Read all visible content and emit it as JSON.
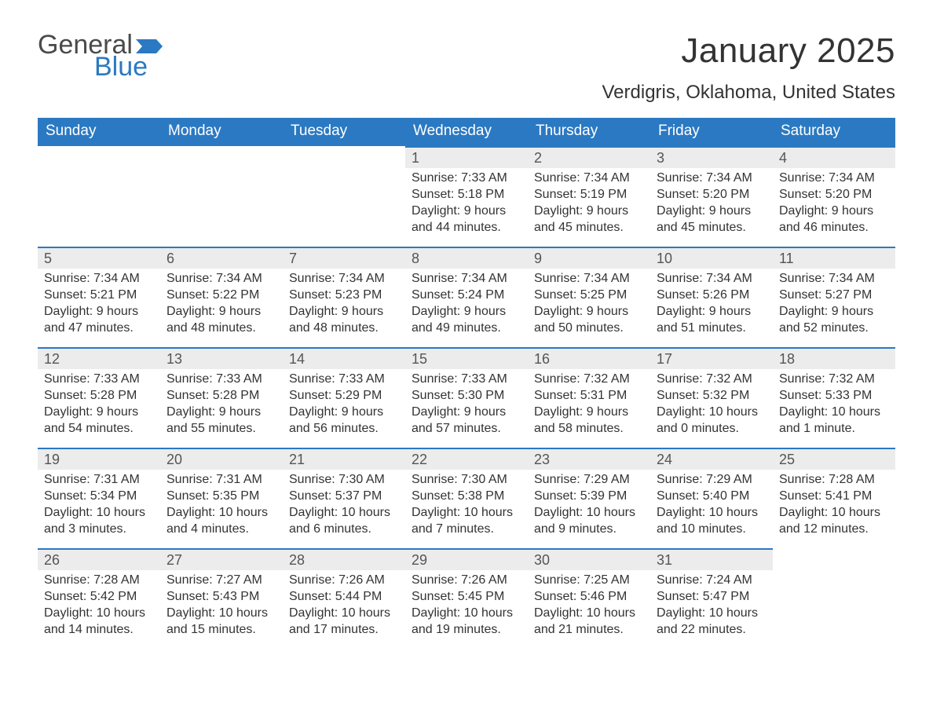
{
  "brand": {
    "word1": "General",
    "word2": "Blue",
    "word1_color": "#4a4a4a",
    "word2_color": "#2b79c2",
    "flag_color": "#2b79c2"
  },
  "title": "January 2025",
  "location": "Verdigris, Oklahoma, United States",
  "colors": {
    "header_bg": "#2b79c2",
    "header_text": "#ffffff",
    "daybar_bg": "#ececec",
    "daybar_border": "#2b79c2",
    "body_text": "#333333",
    "daynum_text": "#555555",
    "page_bg": "#ffffff"
  },
  "typography": {
    "title_fontsize": 44,
    "location_fontsize": 24,
    "weekday_fontsize": 19,
    "daynum_fontsize": 18,
    "body_fontsize": 16
  },
  "layout": {
    "columns": 7,
    "rows": 5,
    "leading_blanks": 3,
    "trailing_blanks": 1
  },
  "weekdays": [
    "Sunday",
    "Monday",
    "Tuesday",
    "Wednesday",
    "Thursday",
    "Friday",
    "Saturday"
  ],
  "labels": {
    "sunrise": "Sunrise: ",
    "sunset": "Sunset: ",
    "daylight": "Daylight: "
  },
  "days": [
    {
      "n": "1",
      "sunrise": "7:33 AM",
      "sunset": "5:18 PM",
      "daylight": "9 hours and 44 minutes."
    },
    {
      "n": "2",
      "sunrise": "7:34 AM",
      "sunset": "5:19 PM",
      "daylight": "9 hours and 45 minutes."
    },
    {
      "n": "3",
      "sunrise": "7:34 AM",
      "sunset": "5:20 PM",
      "daylight": "9 hours and 45 minutes."
    },
    {
      "n": "4",
      "sunrise": "7:34 AM",
      "sunset": "5:20 PM",
      "daylight": "9 hours and 46 minutes."
    },
    {
      "n": "5",
      "sunrise": "7:34 AM",
      "sunset": "5:21 PM",
      "daylight": "9 hours and 47 minutes."
    },
    {
      "n": "6",
      "sunrise": "7:34 AM",
      "sunset": "5:22 PM",
      "daylight": "9 hours and 48 minutes."
    },
    {
      "n": "7",
      "sunrise": "7:34 AM",
      "sunset": "5:23 PM",
      "daylight": "9 hours and 48 minutes."
    },
    {
      "n": "8",
      "sunrise": "7:34 AM",
      "sunset": "5:24 PM",
      "daylight": "9 hours and 49 minutes."
    },
    {
      "n": "9",
      "sunrise": "7:34 AM",
      "sunset": "5:25 PM",
      "daylight": "9 hours and 50 minutes."
    },
    {
      "n": "10",
      "sunrise": "7:34 AM",
      "sunset": "5:26 PM",
      "daylight": "9 hours and 51 minutes."
    },
    {
      "n": "11",
      "sunrise": "7:34 AM",
      "sunset": "5:27 PM",
      "daylight": "9 hours and 52 minutes."
    },
    {
      "n": "12",
      "sunrise": "7:33 AM",
      "sunset": "5:28 PM",
      "daylight": "9 hours and 54 minutes."
    },
    {
      "n": "13",
      "sunrise": "7:33 AM",
      "sunset": "5:28 PM",
      "daylight": "9 hours and 55 minutes."
    },
    {
      "n": "14",
      "sunrise": "7:33 AM",
      "sunset": "5:29 PM",
      "daylight": "9 hours and 56 minutes."
    },
    {
      "n": "15",
      "sunrise": "7:33 AM",
      "sunset": "5:30 PM",
      "daylight": "9 hours and 57 minutes."
    },
    {
      "n": "16",
      "sunrise": "7:32 AM",
      "sunset": "5:31 PM",
      "daylight": "9 hours and 58 minutes."
    },
    {
      "n": "17",
      "sunrise": "7:32 AM",
      "sunset": "5:32 PM",
      "daylight": "10 hours and 0 minutes."
    },
    {
      "n": "18",
      "sunrise": "7:32 AM",
      "sunset": "5:33 PM",
      "daylight": "10 hours and 1 minute."
    },
    {
      "n": "19",
      "sunrise": "7:31 AM",
      "sunset": "5:34 PM",
      "daylight": "10 hours and 3 minutes."
    },
    {
      "n": "20",
      "sunrise": "7:31 AM",
      "sunset": "5:35 PM",
      "daylight": "10 hours and 4 minutes."
    },
    {
      "n": "21",
      "sunrise": "7:30 AM",
      "sunset": "5:37 PM",
      "daylight": "10 hours and 6 minutes."
    },
    {
      "n": "22",
      "sunrise": "7:30 AM",
      "sunset": "5:38 PM",
      "daylight": "10 hours and 7 minutes."
    },
    {
      "n": "23",
      "sunrise": "7:29 AM",
      "sunset": "5:39 PM",
      "daylight": "10 hours and 9 minutes."
    },
    {
      "n": "24",
      "sunrise": "7:29 AM",
      "sunset": "5:40 PM",
      "daylight": "10 hours and 10 minutes."
    },
    {
      "n": "25",
      "sunrise": "7:28 AM",
      "sunset": "5:41 PM",
      "daylight": "10 hours and 12 minutes."
    },
    {
      "n": "26",
      "sunrise": "7:28 AM",
      "sunset": "5:42 PM",
      "daylight": "10 hours and 14 minutes."
    },
    {
      "n": "27",
      "sunrise": "7:27 AM",
      "sunset": "5:43 PM",
      "daylight": "10 hours and 15 minutes."
    },
    {
      "n": "28",
      "sunrise": "7:26 AM",
      "sunset": "5:44 PM",
      "daylight": "10 hours and 17 minutes."
    },
    {
      "n": "29",
      "sunrise": "7:26 AM",
      "sunset": "5:45 PM",
      "daylight": "10 hours and 19 minutes."
    },
    {
      "n": "30",
      "sunrise": "7:25 AM",
      "sunset": "5:46 PM",
      "daylight": "10 hours and 21 minutes."
    },
    {
      "n": "31",
      "sunrise": "7:24 AM",
      "sunset": "5:47 PM",
      "daylight": "10 hours and 22 minutes."
    }
  ]
}
